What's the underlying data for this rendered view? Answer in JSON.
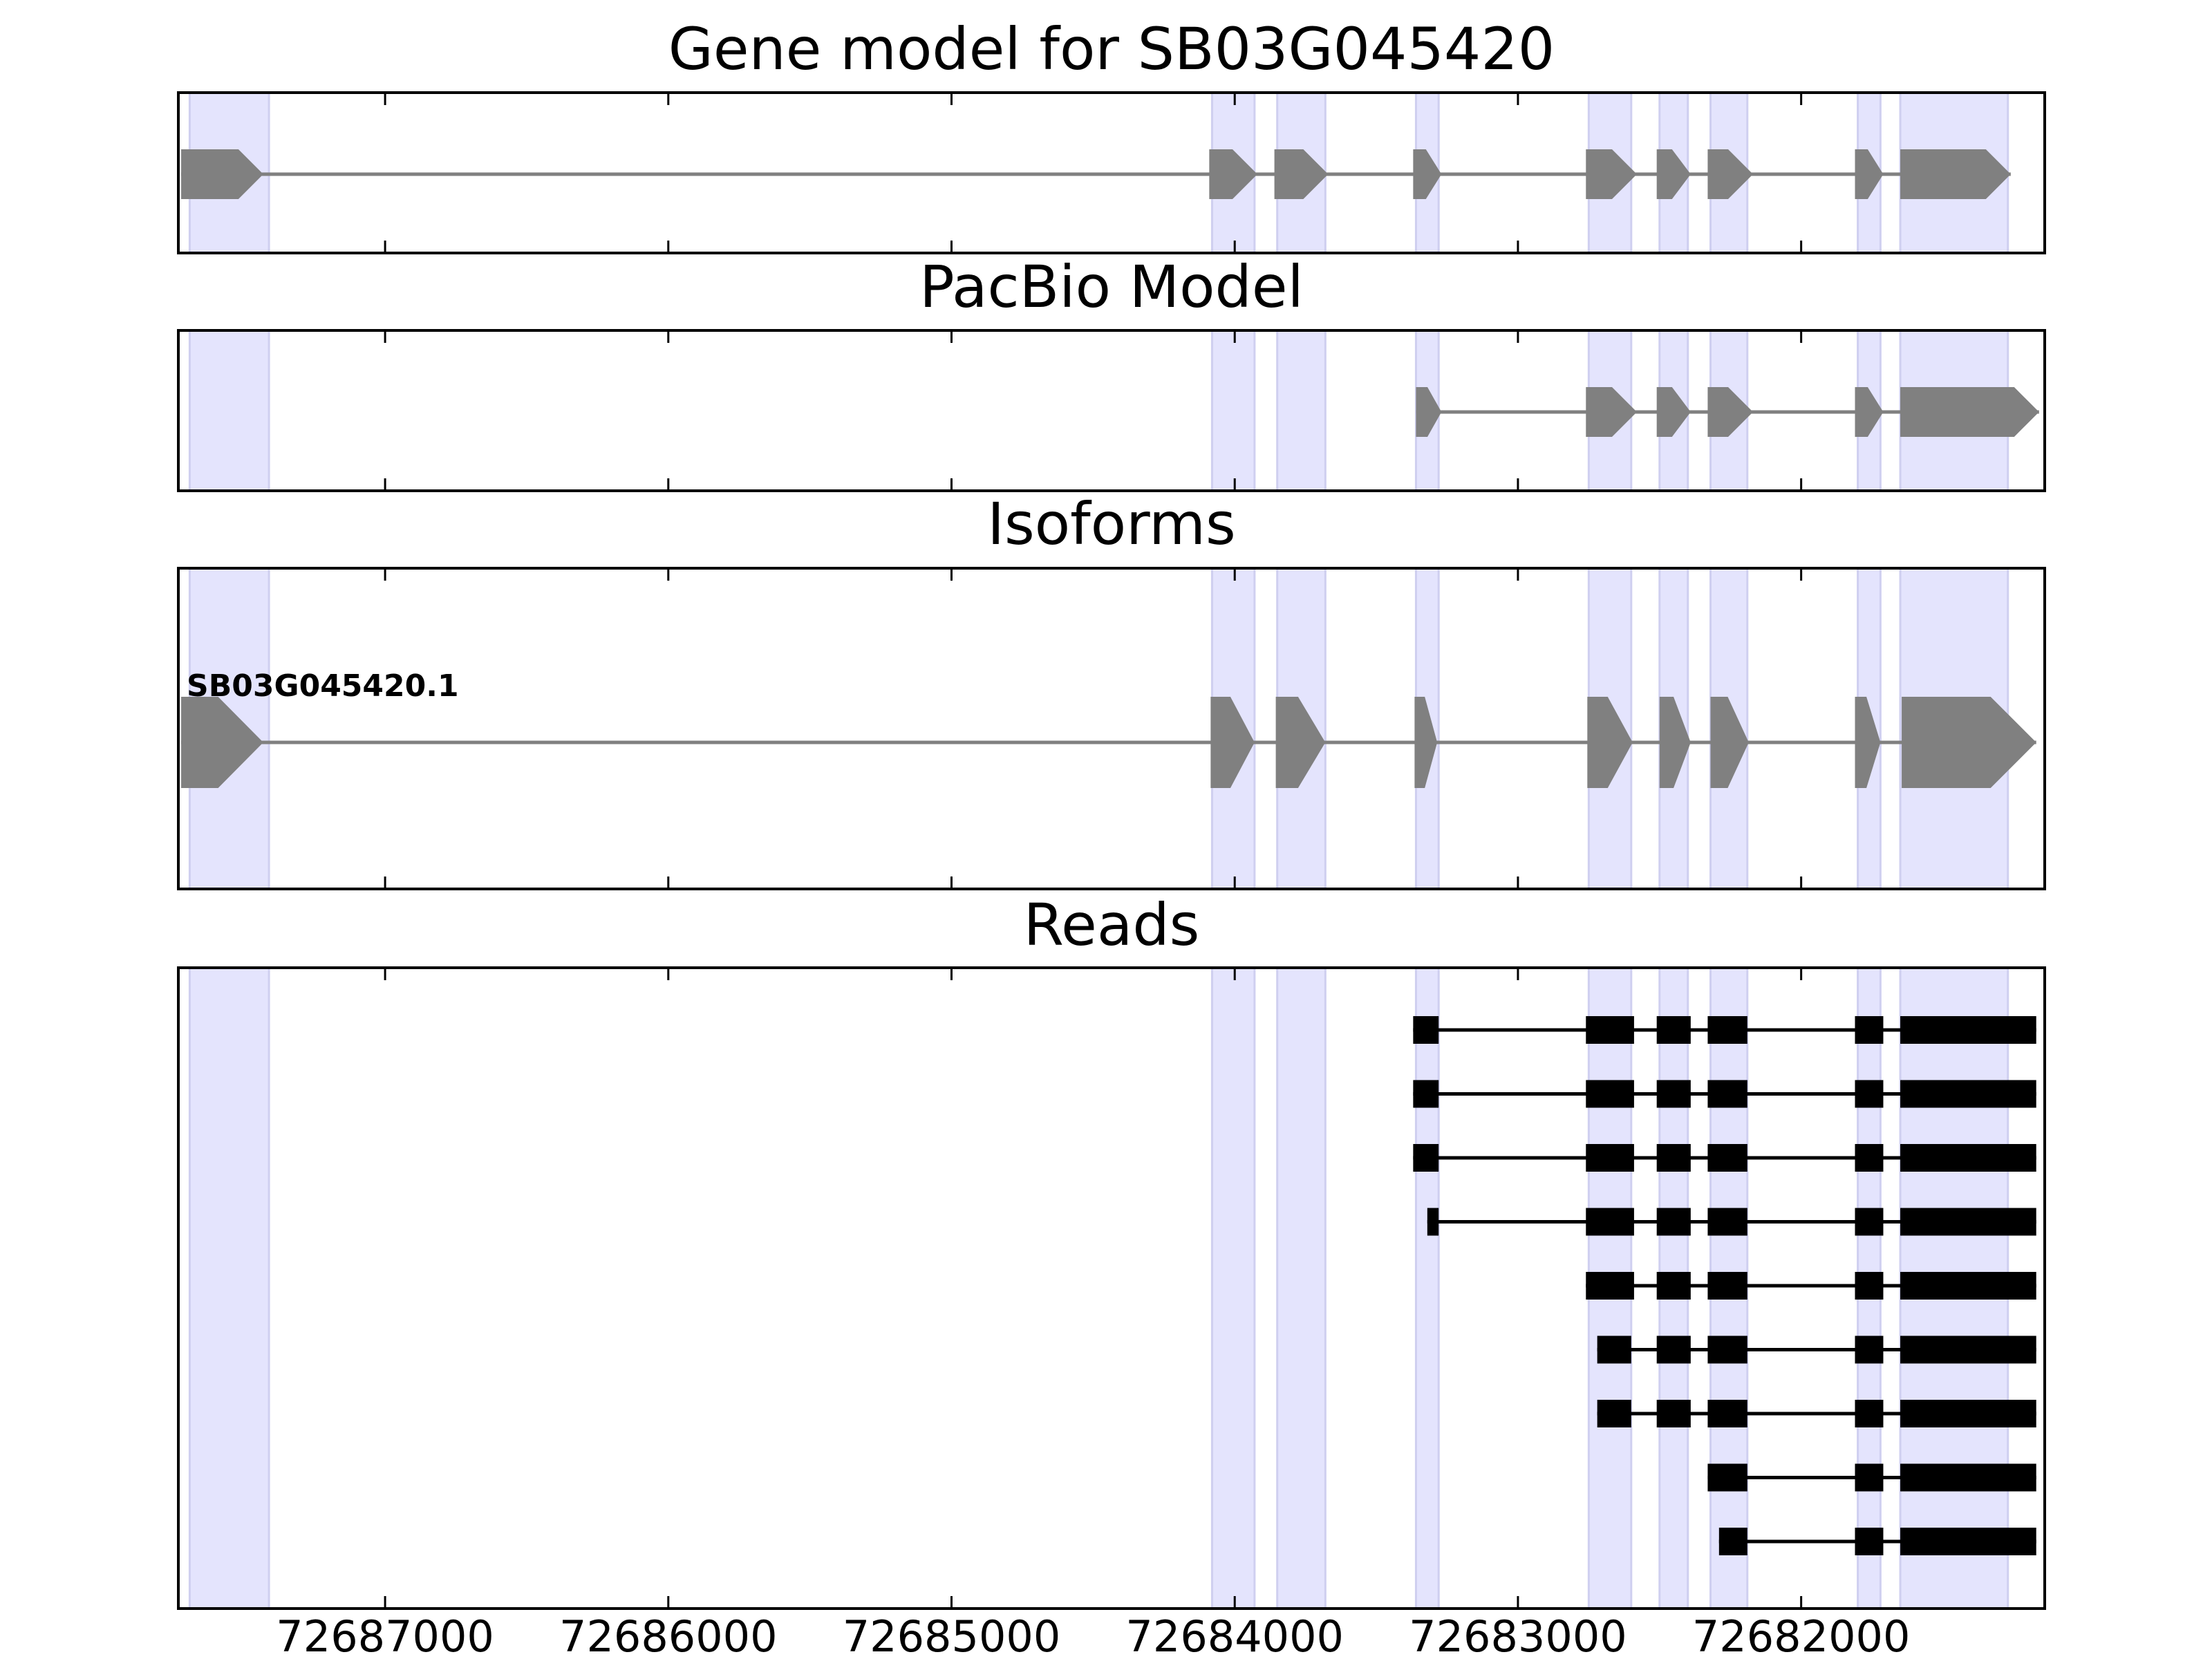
{
  "chart_data": {
    "type": "gene_model_tracks",
    "xaxis": {
      "direction": "decreasing-left-to-right",
      "range": [
        72687730,
        72681140
      ],
      "ticks": [
        72687000,
        72686000,
        72685000,
        72684000,
        72683000,
        72682000
      ],
      "tick_labels": [
        "72687000",
        "72686000",
        "72685000",
        "72684000",
        "72683000",
        "72682000"
      ]
    },
    "colors": {
      "shade": "#e4e4fd",
      "shade_border": "#cfcff0",
      "gene_feature": "#808080",
      "read_feature": "#000000",
      "axis": "#000000"
    },
    "exon_shading": [
      [
        72687690,
        72687410
      ],
      [
        72684080,
        72683930
      ],
      [
        72683850,
        72683680
      ],
      [
        72683360,
        72683280
      ],
      [
        72682750,
        72682600
      ],
      [
        72682500,
        72682400
      ],
      [
        72682320,
        72682190
      ],
      [
        72681800,
        72681720
      ],
      [
        72681650,
        72681270
      ]
    ],
    "panels": [
      {
        "id": "gene-model",
        "title": "Gene model for SB03G045420",
        "features": [
          {
            "exons": [
              [
                72687720,
                72687430
              ],
              [
                72684090,
                72683920
              ],
              [
                72683860,
                72683670
              ],
              [
                72683370,
                72683270
              ],
              [
                72682760,
                72682580
              ],
              [
                72682510,
                72682390
              ],
              [
                72682330,
                72682170
              ],
              [
                72681810,
                72681710
              ],
              [
                72681650,
                72681260
              ]
            ]
          }
        ]
      },
      {
        "id": "pacbio-model",
        "title": "PacBio Model",
        "features": [
          {
            "exons": [
              [
                72683360,
                72683270
              ],
              [
                72682760,
                72682580
              ],
              [
                72682510,
                72682390
              ],
              [
                72682330,
                72682170
              ],
              [
                72681810,
                72681710
              ],
              [
                72681650,
                72681160
              ]
            ]
          }
        ]
      },
      {
        "id": "isoforms",
        "title": "Isoforms",
        "features": [
          {
            "label": "SB03G045420.1",
            "exons": [
              [
                72687720,
                72687430
              ],
              [
                72684085,
                72683930
              ],
              [
                72683855,
                72683680
              ],
              [
                72683365,
                72683285
              ],
              [
                72682755,
                72682595
              ],
              [
                72682500,
                72682390
              ],
              [
                72682320,
                72682185
              ],
              [
                72681810,
                72681720
              ],
              [
                72681645,
                72681170
              ]
            ]
          }
        ]
      },
      {
        "id": "reads",
        "title": "Reads",
        "features": [
          {
            "exons": [
              [
                72683370,
                72683280
              ],
              [
                72682760,
                72682590
              ],
              [
                72682510,
                72682390
              ],
              [
                72682330,
                72682190
              ],
              [
                72681810,
                72681710
              ],
              [
                72681650,
                72681170
              ]
            ]
          },
          {
            "exons": [
              [
                72683370,
                72683280
              ],
              [
                72682760,
                72682590
              ],
              [
                72682510,
                72682390
              ],
              [
                72682330,
                72682190
              ],
              [
                72681810,
                72681710
              ],
              [
                72681650,
                72681170
              ]
            ]
          },
          {
            "exons": [
              [
                72683370,
                72683280
              ],
              [
                72682760,
                72682590
              ],
              [
                72682510,
                72682390
              ],
              [
                72682330,
                72682190
              ],
              [
                72681810,
                72681710
              ],
              [
                72681650,
                72681170
              ]
            ]
          },
          {
            "exons": [
              [
                72683320,
                72683280
              ],
              [
                72682760,
                72682590
              ],
              [
                72682510,
                72682390
              ],
              [
                72682330,
                72682190
              ],
              [
                72681810,
                72681710
              ],
              [
                72681650,
                72681170
              ]
            ]
          },
          {
            "exons": [
              [
                72682760,
                72682590
              ],
              [
                72682510,
                72682390
              ],
              [
                72682330,
                72682190
              ],
              [
                72681810,
                72681710
              ],
              [
                72681650,
                72681170
              ]
            ]
          },
          {
            "exons": [
              [
                72682720,
                72682600
              ],
              [
                72682510,
                72682390
              ],
              [
                72682330,
                72682190
              ],
              [
                72681810,
                72681710
              ],
              [
                72681650,
                72681170
              ]
            ]
          },
          {
            "exons": [
              [
                72682720,
                72682600
              ],
              [
                72682510,
                72682390
              ],
              [
                72682330,
                72682190
              ],
              [
                72681810,
                72681710
              ],
              [
                72681650,
                72681170
              ]
            ]
          },
          {
            "exons": [
              [
                72682330,
                72682190
              ],
              [
                72681810,
                72681710
              ],
              [
                72681650,
                72681170
              ]
            ]
          },
          {
            "exons": [
              [
                72682290,
                72682190
              ],
              [
                72681810,
                72681710
              ],
              [
                72681650,
                72681170
              ]
            ]
          }
        ]
      }
    ]
  }
}
